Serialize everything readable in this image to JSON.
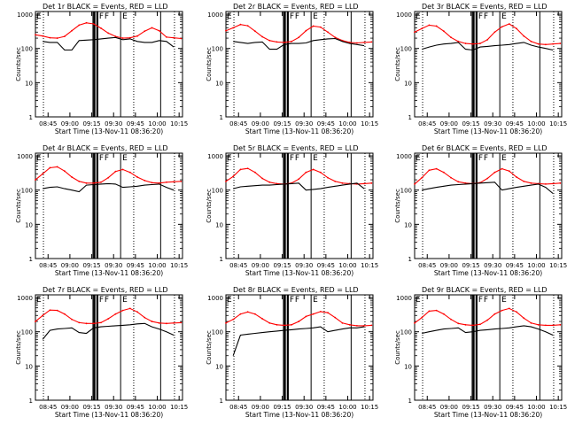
{
  "figure": {
    "xlabel": "Start Time (13-Nov-11 08:36:20)",
    "ylabel": "Counts/sec"
  },
  "axes": {
    "x_ticks": [
      "08:45",
      "09:00",
      "09:15",
      "09:30",
      "09:45",
      "10:00",
      "10:15"
    ],
    "x_tick_minutes": [
      8.67,
      23.67,
      38.67,
      53.67,
      68.67,
      83.67,
      98.67
    ],
    "xlim": [
      0,
      101
    ],
    "y_ticks": [
      "1",
      "10",
      "100",
      "1000"
    ],
    "y_tick_values": [
      1,
      10,
      100,
      1000
    ],
    "ylim": [
      1,
      1200
    ],
    "y_scale": "log"
  },
  "markers": {
    "dotted_minutes": [
      5.5,
      67.5,
      95.5
    ],
    "solid_minutes": [
      58.5,
      86.0,
      39.5
    ],
    "thick_minutes": [
      40.5,
      42.5
    ],
    "labels": [
      "E",
      "F",
      "F",
      "E"
    ]
  },
  "colors": {
    "events": "#000000",
    "lld": "#ff0000"
  },
  "chart_data": [
    {
      "type": "line",
      "title": "Det 1r  BLACK = Events, RED = LLD",
      "x_unit": "minutes after 08:36:20",
      "y_unit": "Counts/sec",
      "series": [
        {
          "name": "LLD",
          "color": "#ff0000",
          "x": [
            0,
            5,
            10,
            15,
            20,
            25,
            30,
            35,
            40,
            45,
            50,
            55,
            60,
            65,
            70,
            75,
            80,
            85,
            90,
            95,
            100
          ],
          "values": [
            250,
            230,
            205,
            200,
            225,
            330,
            480,
            560,
            520,
            390,
            280,
            225,
            200,
            205,
            230,
            320,
            400,
            330,
            215,
            205,
            195
          ]
        },
        {
          "name": "Events",
          "color": "#000000",
          "x": [
            5,
            10,
            15,
            20,
            25,
            30,
            35,
            40,
            45,
            50,
            55,
            60,
            65,
            70,
            75,
            80,
            85,
            90,
            95
          ],
          "values": [
            160,
            150,
            150,
            90,
            90,
            170,
            175,
            180,
            190,
            200,
            210,
            180,
            190,
            160,
            150,
            150,
            170,
            160,
            110
          ]
        }
      ]
    },
    {
      "type": "line",
      "title": "Det 2r  BLACK = Events, RED = LLD",
      "x_unit": "minutes after 08:36:20",
      "y_unit": "Counts/sec",
      "series": [
        {
          "name": "LLD",
          "color": "#ff0000",
          "x": [
            0,
            5,
            10,
            15,
            20,
            25,
            30,
            35,
            40,
            45,
            50,
            55,
            60,
            65,
            70,
            75,
            80,
            85,
            90,
            95,
            100
          ],
          "values": [
            330,
            400,
            500,
            460,
            320,
            220,
            170,
            155,
            150,
            160,
            210,
            330,
            450,
            420,
            300,
            210,
            170,
            150,
            145,
            150,
            155
          ]
        },
        {
          "name": "Events",
          "color": "#000000",
          "x": [
            5,
            10,
            15,
            20,
            25,
            30,
            35,
            40,
            45,
            50,
            55,
            60,
            65,
            70,
            75,
            80,
            85,
            90,
            95
          ],
          "values": [
            160,
            150,
            140,
            150,
            155,
            95,
            95,
            130,
            140,
            140,
            145,
            170,
            180,
            190,
            195,
            160,
            140,
            130,
            120
          ]
        }
      ]
    },
    {
      "type": "line",
      "title": "Det 3r  BLACK = Events, RED = LLD",
      "x_unit": "minutes after 08:36:20",
      "y_unit": "Counts/sec",
      "series": [
        {
          "name": "LLD",
          "color": "#ff0000",
          "x": [
            0,
            5,
            10,
            15,
            20,
            25,
            30,
            35,
            40,
            45,
            50,
            55,
            60,
            65,
            70,
            75,
            80,
            85,
            90,
            95,
            100
          ],
          "values": [
            300,
            380,
            480,
            450,
            320,
            210,
            160,
            140,
            135,
            140,
            180,
            300,
            430,
            520,
            380,
            230,
            160,
            135,
            130,
            135,
            140
          ]
        },
        {
          "name": "Events",
          "color": "#000000",
          "x": [
            5,
            10,
            15,
            20,
            25,
            30,
            35,
            40,
            45,
            50,
            55,
            60,
            65,
            70,
            75,
            80,
            85,
            90,
            95
          ],
          "values": [
            95,
            110,
            125,
            135,
            140,
            150,
            95,
            90,
            110,
            115,
            120,
            125,
            130,
            140,
            150,
            125,
            110,
            100,
            90
          ]
        }
      ]
    },
    {
      "type": "line",
      "title": "Det 4r  BLACK = Events, RED = LLD",
      "x_unit": "minutes after 08:36:20",
      "y_unit": "Counts/sec",
      "series": [
        {
          "name": "LLD",
          "color": "#ff0000",
          "x": [
            0,
            5,
            10,
            15,
            20,
            25,
            30,
            35,
            40,
            45,
            50,
            55,
            60,
            65,
            70,
            75,
            80,
            85,
            90,
            95,
            100
          ],
          "values": [
            200,
            300,
            450,
            480,
            360,
            240,
            180,
            160,
            160,
            170,
            230,
            350,
            400,
            330,
            240,
            190,
            165,
            160,
            170,
            175,
            180
          ]
        },
        {
          "name": "Events",
          "color": "#000000",
          "x": [
            5,
            10,
            15,
            20,
            25,
            30,
            35,
            40,
            45,
            50,
            55,
            60,
            65,
            70,
            75,
            80,
            85,
            90,
            95
          ],
          "values": [
            110,
            120,
            125,
            110,
            100,
            90,
            140,
            145,
            150,
            155,
            150,
            120,
            125,
            130,
            140,
            145,
            150,
            120,
            100
          ]
        }
      ]
    },
    {
      "type": "line",
      "title": "Det 5r  BLACK = Events, RED = LLD",
      "x_unit": "minutes after 08:36:20",
      "y_unit": "Counts/sec",
      "series": [
        {
          "name": "LLD",
          "color": "#ff0000",
          "x": [
            0,
            5,
            10,
            15,
            20,
            25,
            30,
            35,
            40,
            45,
            50,
            55,
            60,
            65,
            70,
            75,
            80,
            85,
            90,
            95,
            100
          ],
          "values": [
            180,
            250,
            400,
            430,
            330,
            220,
            170,
            155,
            150,
            160,
            210,
            330,
            400,
            330,
            230,
            180,
            160,
            155,
            150,
            155,
            160
          ]
        },
        {
          "name": "Events",
          "color": "#000000",
          "x": [
            5,
            10,
            15,
            20,
            25,
            30,
            35,
            40,
            45,
            50,
            55,
            60,
            65,
            70,
            75,
            80,
            85,
            90,
            95
          ],
          "values": [
            110,
            125,
            130,
            135,
            140,
            140,
            145,
            150,
            155,
            160,
            100,
            105,
            110,
            120,
            130,
            140,
            150,
            160,
            110
          ]
        }
      ]
    },
    {
      "type": "line",
      "title": "Det 6r  BLACK = Events, RED = LLD",
      "x_unit": "minutes after 08:36:20",
      "y_unit": "Counts/sec",
      "series": [
        {
          "name": "LLD",
          "color": "#ff0000",
          "x": [
            0,
            5,
            10,
            15,
            20,
            25,
            30,
            35,
            40,
            45,
            50,
            55,
            60,
            65,
            70,
            75,
            80,
            85,
            90,
            95,
            100
          ],
          "values": [
            150,
            230,
            380,
            420,
            330,
            230,
            175,
            160,
            155,
            165,
            220,
            330,
            420,
            360,
            240,
            180,
            160,
            155,
            150,
            155,
            160
          ]
        },
        {
          "name": "Events",
          "color": "#000000",
          "x": [
            5,
            10,
            15,
            20,
            25,
            30,
            35,
            40,
            45,
            50,
            55,
            60,
            65,
            70,
            75,
            80,
            85,
            90,
            95
          ],
          "values": [
            100,
            110,
            120,
            130,
            140,
            145,
            150,
            155,
            160,
            165,
            170,
            100,
            110,
            120,
            130,
            140,
            150,
            120,
            80
          ]
        }
      ]
    },
    {
      "type": "line",
      "title": "Det 7r  BLACK = Events, RED = LLD",
      "x_unit": "minutes after 08:36:20",
      "y_unit": "Counts/sec",
      "series": [
        {
          "name": "LLD",
          "color": "#ff0000",
          "x": [
            0,
            5,
            10,
            15,
            20,
            25,
            30,
            35,
            40,
            45,
            50,
            55,
            60,
            65,
            70,
            75,
            80,
            85,
            90,
            95,
            100
          ],
          "values": [
            200,
            300,
            430,
            420,
            330,
            230,
            185,
            175,
            175,
            185,
            240,
            330,
            420,
            480,
            380,
            260,
            200,
            180,
            175,
            180,
            185
          ]
        },
        {
          "name": "Events",
          "color": "#000000",
          "x": [
            5,
            10,
            15,
            20,
            25,
            30,
            35,
            40,
            45,
            50,
            55,
            60,
            65,
            70,
            75,
            80,
            85,
            90,
            95
          ],
          "values": [
            60,
            110,
            120,
            125,
            130,
            95,
            90,
            130,
            140,
            145,
            150,
            155,
            160,
            170,
            175,
            140,
            120,
            100,
            80
          ]
        }
      ]
    },
    {
      "type": "line",
      "title": "Det 8r  BLACK = Events, RED = LLD",
      "x_unit": "minutes after 08:36:20",
      "y_unit": "Counts/sec",
      "series": [
        {
          "name": "LLD",
          "color": "#ff0000",
          "x": [
            0,
            5,
            10,
            15,
            20,
            25,
            30,
            35,
            40,
            45,
            50,
            55,
            60,
            65,
            70,
            75,
            80,
            85,
            90,
            95,
            100
          ],
          "values": [
            180,
            230,
            330,
            380,
            330,
            240,
            180,
            160,
            155,
            160,
            200,
            280,
            330,
            390,
            360,
            260,
            180,
            160,
            150,
            150,
            155
          ]
        },
        {
          "name": "Events",
          "color": "#000000",
          "x": [
            5,
            10,
            15,
            20,
            25,
            30,
            35,
            40,
            45,
            50,
            55,
            60,
            65,
            70,
            75,
            80,
            85,
            90,
            95
          ],
          "values": [
            20,
            80,
            85,
            90,
            95,
            100,
            105,
            110,
            115,
            120,
            125,
            130,
            140,
            100,
            110,
            120,
            130,
            130,
            140
          ]
        }
      ]
    },
    {
      "type": "line",
      "title": "Det 9r  BLACK = Events, RED = LLD",
      "x_unit": "minutes after 08:36:20",
      "y_unit": "Counts/sec",
      "series": [
        {
          "name": "LLD",
          "color": "#ff0000",
          "x": [
            0,
            5,
            10,
            15,
            20,
            25,
            30,
            35,
            40,
            45,
            50,
            55,
            60,
            65,
            70,
            75,
            80,
            85,
            90,
            95,
            100
          ],
          "values": [
            180,
            260,
            400,
            420,
            330,
            230,
            175,
            160,
            155,
            165,
            220,
            330,
            420,
            480,
            380,
            250,
            180,
            160,
            155,
            155,
            160
          ]
        },
        {
          "name": "Events",
          "color": "#000000",
          "x": [
            5,
            10,
            15,
            20,
            25,
            30,
            35,
            40,
            45,
            50,
            55,
            60,
            65,
            70,
            75,
            80,
            85,
            90,
            95
          ],
          "values": [
            90,
            100,
            110,
            120,
            125,
            130,
            95,
            100,
            110,
            115,
            120,
            125,
            130,
            140,
            150,
            140,
            120,
            100,
            80
          ]
        }
      ]
    }
  ]
}
